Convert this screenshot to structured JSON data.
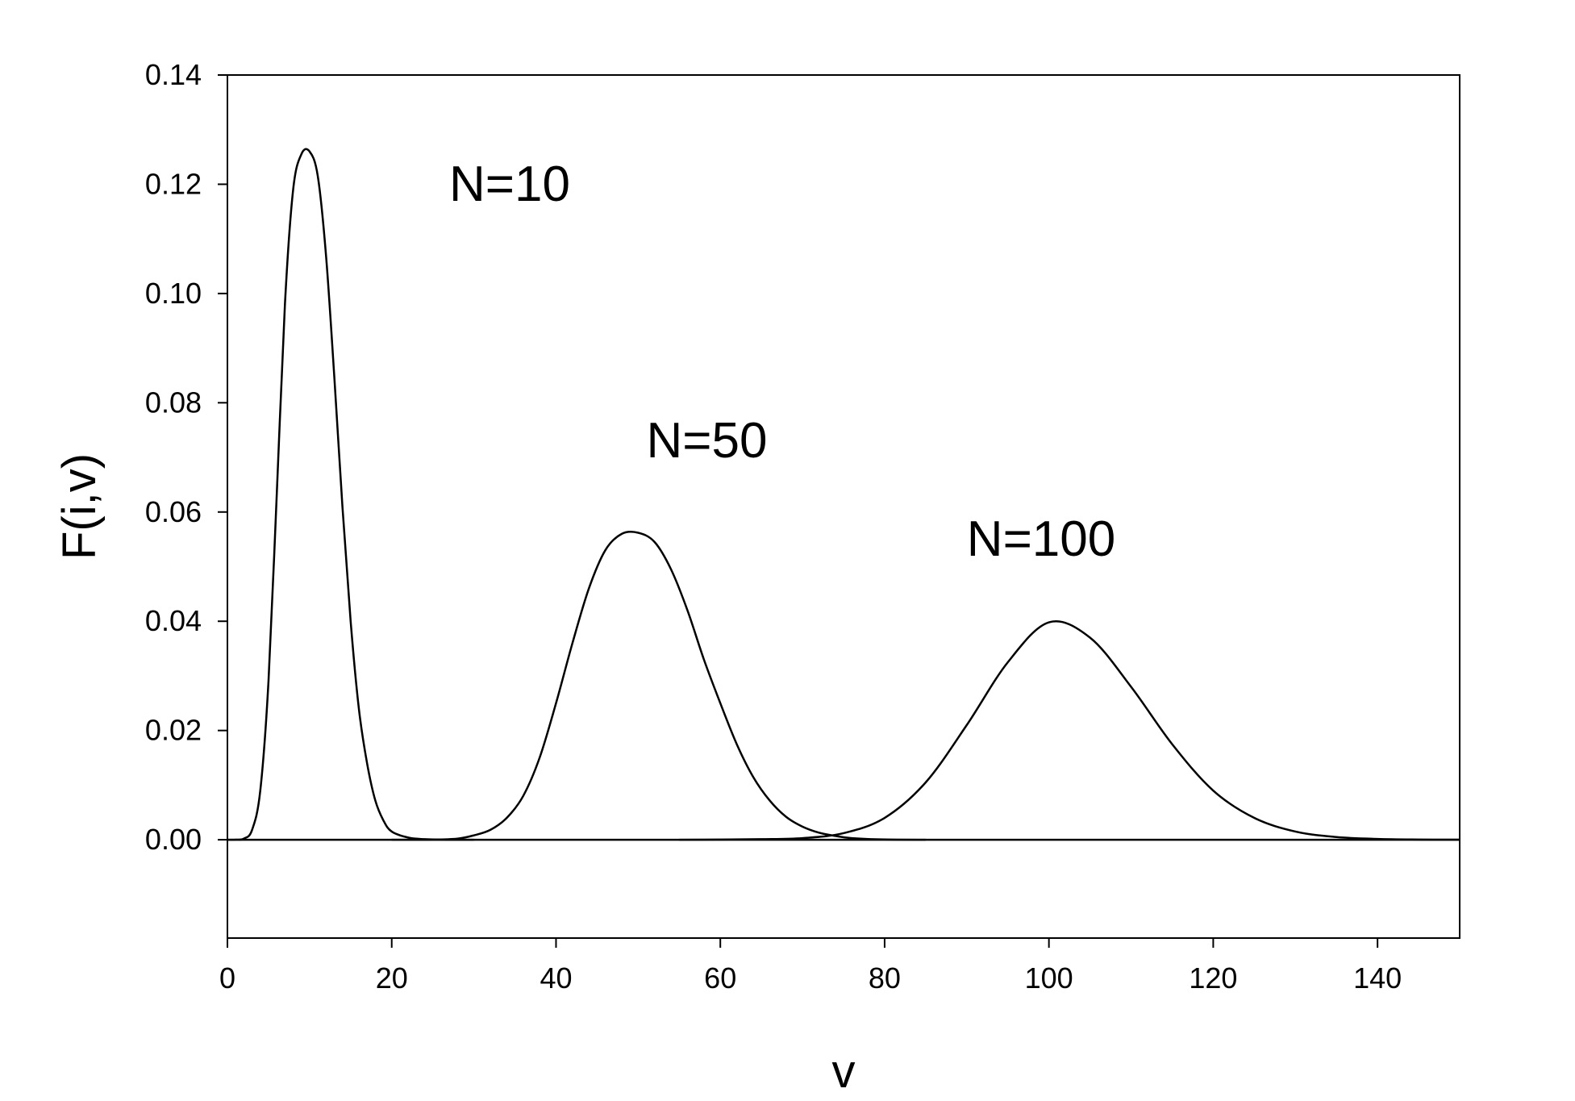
{
  "chart_data": {
    "type": "line",
    "title": "",
    "xlabel": "v",
    "ylabel": "F(i,v)",
    "xlim": [
      0,
      150
    ],
    "ylim": [
      -0.018,
      0.14
    ],
    "xticks": [
      0,
      20,
      40,
      60,
      80,
      100,
      120,
      140
    ],
    "xtick_labels": [
      "0",
      "20",
      "40",
      "60",
      "80",
      "100",
      "120",
      "140"
    ],
    "yticks": [
      0.0,
      0.02,
      0.04,
      0.06,
      0.08,
      0.1,
      0.12,
      0.14
    ],
    "ytick_labels": [
      "0.00",
      "0.02",
      "0.04",
      "0.06",
      "0.08",
      "0.10",
      "0.12",
      "0.14"
    ],
    "grid": false,
    "legend": "none",
    "line_color": "#000000",
    "baseline_y": 0,
    "annotations": [
      {
        "text": "N=10",
        "x": 27,
        "y": 0.117
      },
      {
        "text": "N=50",
        "x": 51,
        "y": 0.07
      },
      {
        "text": "N=100",
        "x": 90,
        "y": 0.052
      }
    ],
    "series": [
      {
        "x": [
          0,
          1,
          2,
          3,
          4,
          5,
          6,
          7,
          8,
          9,
          10,
          11,
          12,
          13,
          14,
          15,
          16,
          17,
          18,
          19,
          20,
          22,
          24,
          26,
          28,
          30
        ],
        "y": [
          0,
          1e-05,
          0.0002,
          0.0018,
          0.009,
          0.029,
          0.063,
          0.098,
          0.119,
          0.1255,
          0.126,
          0.1215,
          0.107,
          0.085,
          0.061,
          0.04,
          0.024,
          0.014,
          0.0072,
          0.0035,
          0.0015,
          0.0004,
          0.0001,
          2e-05,
          0.0,
          0.0
        ]
      },
      {
        "x": [
          20,
          25,
          28,
          30,
          32,
          34,
          36,
          38,
          40,
          42,
          44,
          46,
          48,
          50,
          52,
          54,
          56,
          58,
          60,
          62,
          64,
          66,
          68,
          70,
          72,
          74,
          76,
          80,
          85
        ],
        "y": [
          0,
          2e-05,
          0.0002,
          0.0008,
          0.0018,
          0.004,
          0.008,
          0.015,
          0.025,
          0.036,
          0.046,
          0.053,
          0.056,
          0.0562,
          0.0545,
          0.0495,
          0.042,
          0.033,
          0.025,
          0.0175,
          0.0115,
          0.0072,
          0.0042,
          0.0024,
          0.0013,
          0.0007,
          0.0003,
          5e-05,
          0.0
        ]
      },
      {
        "x": [
          55,
          60,
          65,
          70,
          75,
          80,
          85,
          90,
          95,
          100,
          105,
          110,
          115,
          120,
          125,
          130,
          135,
          140,
          145,
          150
        ],
        "y": [
          0,
          3e-05,
          0.0001,
          0.0003,
          0.0012,
          0.004,
          0.0105,
          0.021,
          0.0325,
          0.0398,
          0.037,
          0.028,
          0.0175,
          0.009,
          0.004,
          0.0015,
          0.0005,
          0.00015,
          4e-05,
          1e-05
        ]
      }
    ]
  }
}
